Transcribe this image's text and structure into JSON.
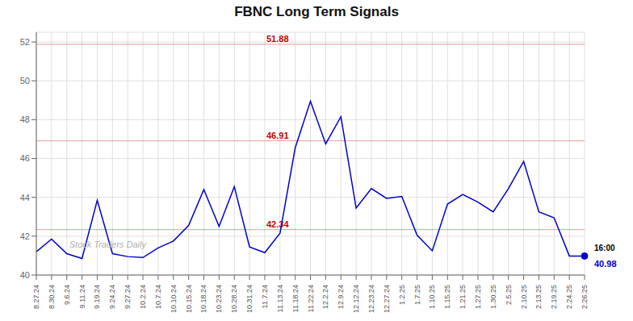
{
  "chart_data": {
    "type": "line",
    "title": "FBNC Long Term Signals",
    "categories": [
      "8.27.24",
      "8.30.24",
      "9.6.24",
      "9.11.24",
      "9.19.24",
      "9.24.24",
      "9.27.24",
      "10.2.24",
      "10.7.24",
      "10.10.24",
      "10.15.24",
      "10.18.24",
      "10.23.24",
      "10.28.24",
      "10.31.24",
      "11.7.24",
      "11.13.24",
      "11.18.24",
      "11.22.24",
      "12.2.24",
      "12.9.24",
      "12.12.24",
      "12.23.24",
      "12.27.24",
      "1.2.25",
      "1.7.25",
      "1.10.25",
      "1.15.25",
      "1.21.25",
      "1.27.25",
      "1.30.25",
      "2.5.25",
      "2.10.25",
      "2.13.25",
      "2.19.25",
      "2.24.25",
      "2.26.25"
    ],
    "values": [
      41.2,
      41.85,
      41.1,
      40.85,
      43.85,
      41.1,
      40.95,
      40.9,
      41.4,
      41.75,
      42.55,
      44.4,
      42.5,
      44.55,
      41.45,
      41.15,
      42.15,
      46.55,
      48.95,
      46.75,
      48.15,
      43.45,
      44.45,
      43.95,
      44.05,
      42.05,
      41.25,
      43.65,
      44.15,
      43.75,
      43.25,
      44.45,
      45.85,
      43.25,
      42.95,
      40.98,
      40.98
    ],
    "color": "#0000cc",
    "ylim": [
      40,
      52.5
    ],
    "yticks": [
      40,
      42,
      44,
      46,
      48,
      50,
      52
    ],
    "grid": true,
    "hlines": [
      {
        "y": 51.88,
        "label": "51.88",
        "color": "#cc0000"
      },
      {
        "y": 46.91,
        "label": "46.91",
        "color": "#cc0000"
      },
      {
        "y": 42.34,
        "label": "42.34",
        "color": "#cc0000"
      }
    ],
    "annotations": [
      {
        "text": "Stock Traders Daily"
      },
      {
        "text": "16:00",
        "x": "2.26.25",
        "y": 40.98
      },
      {
        "text": "40.98",
        "x": "2.26.25",
        "y": 40.98
      }
    ]
  }
}
